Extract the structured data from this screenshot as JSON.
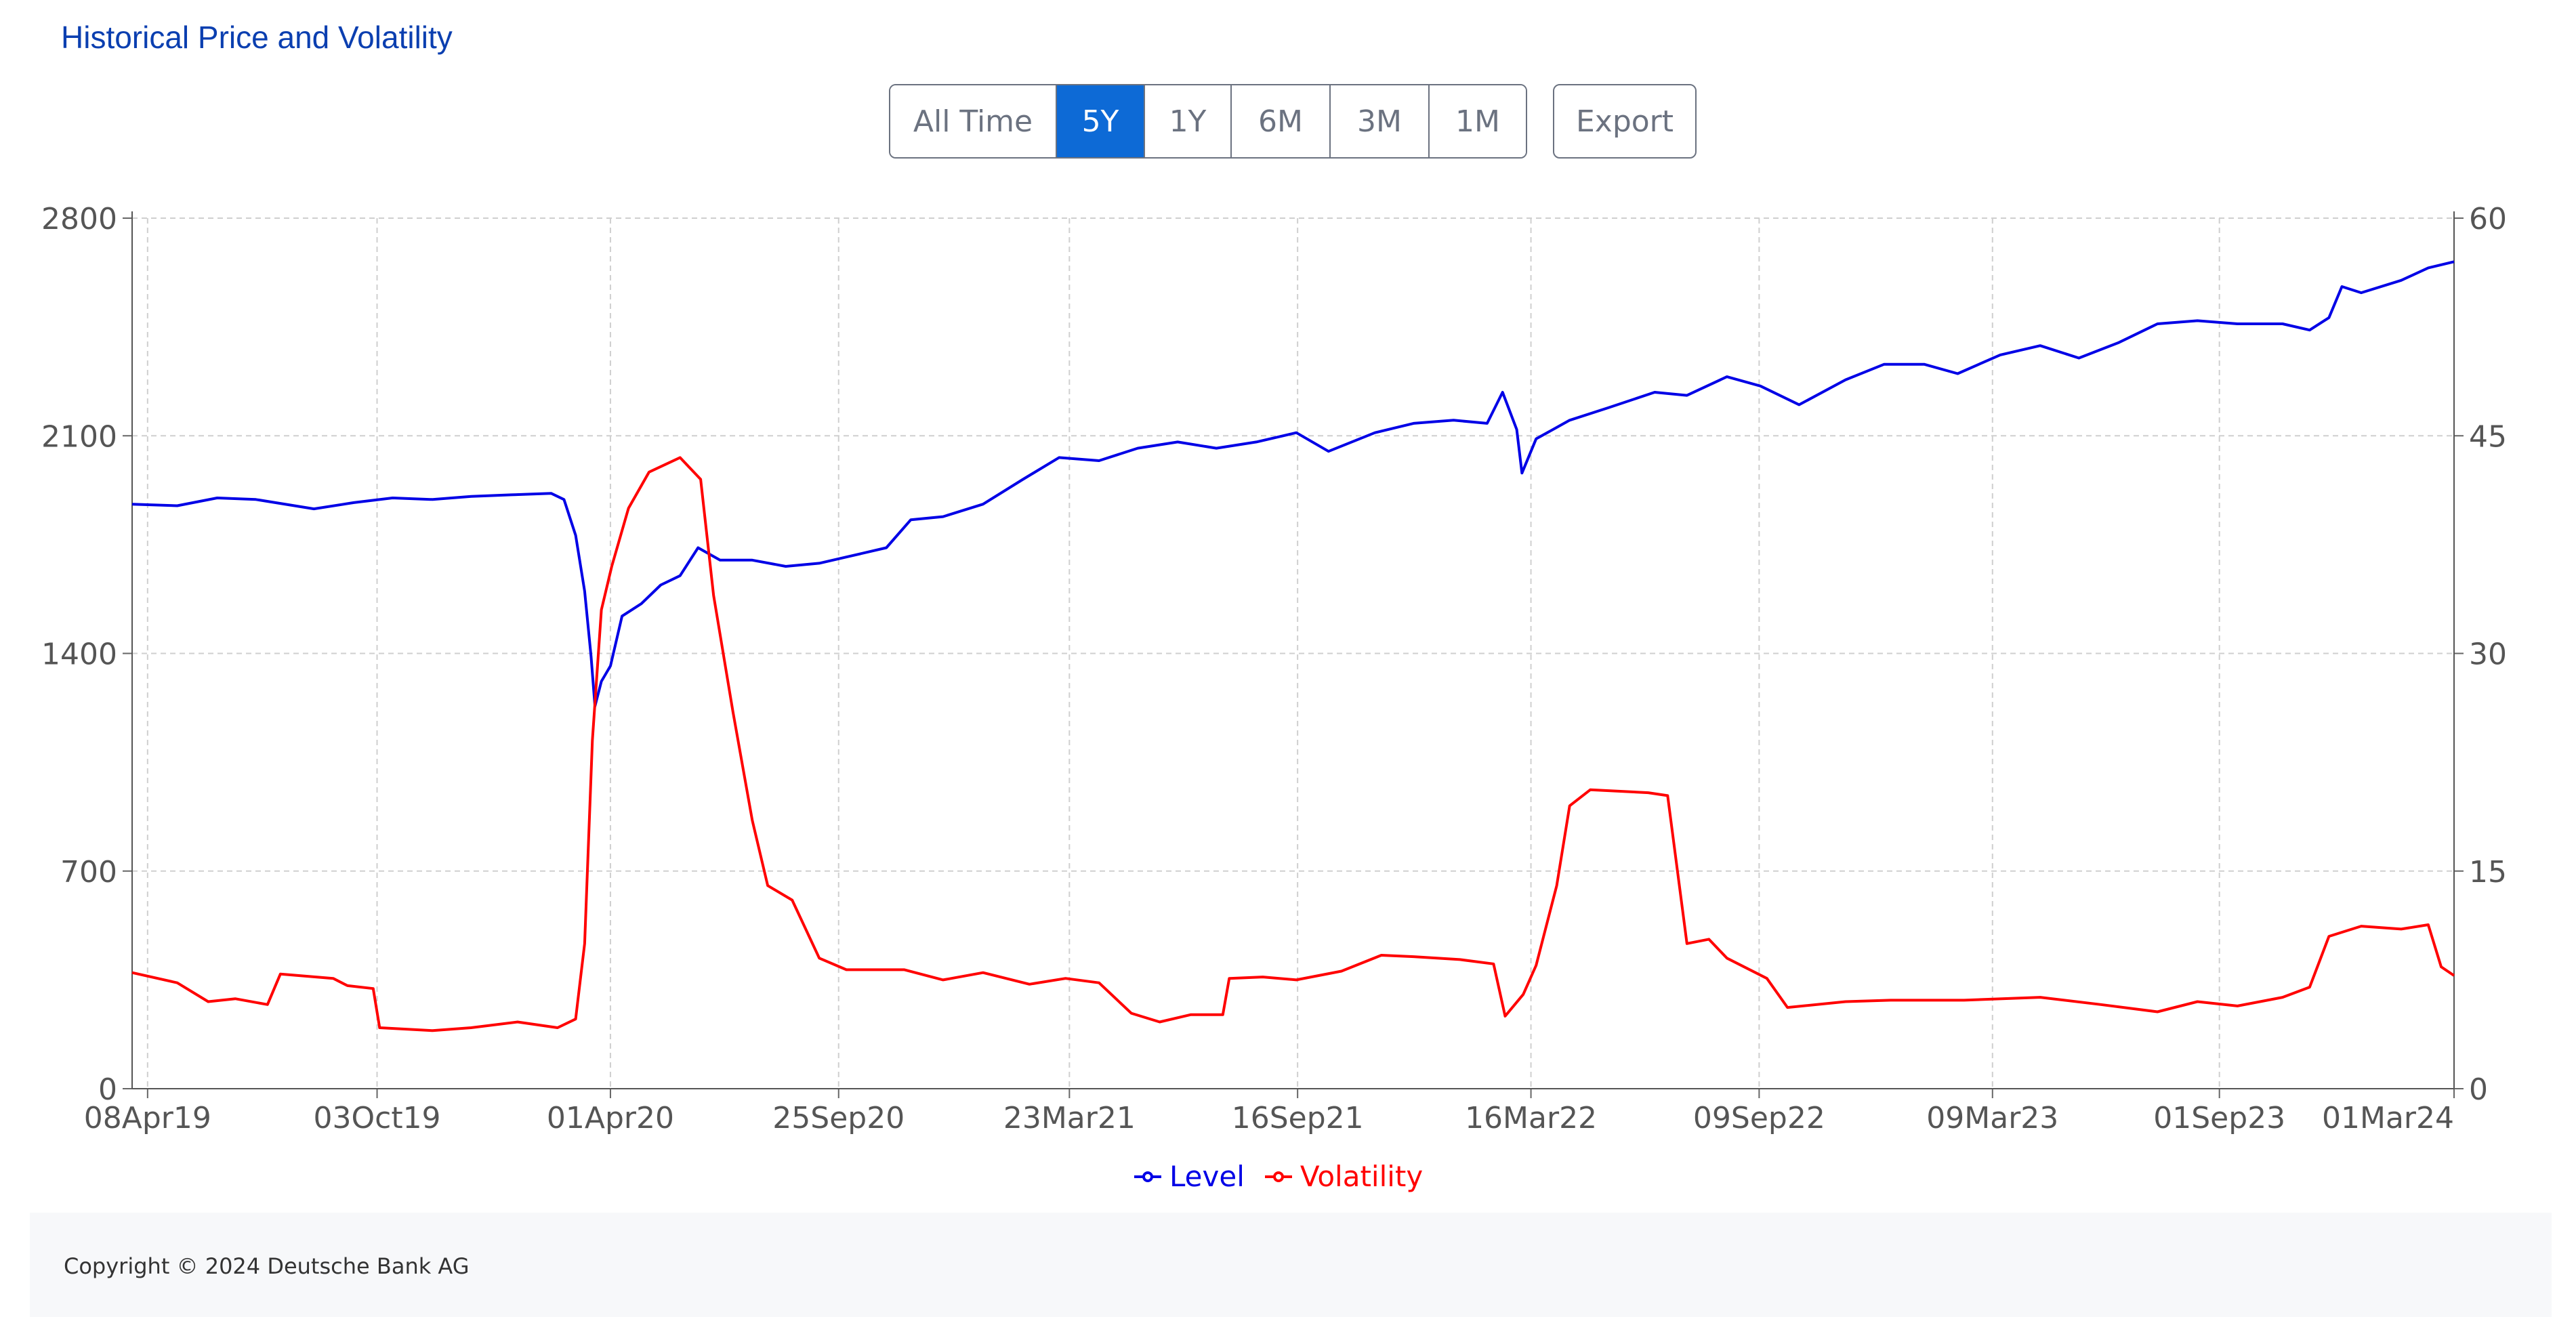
{
  "title": "Historical Price and Volatility",
  "ranges": [
    {
      "label": "All Time",
      "active": false
    },
    {
      "label": "5Y",
      "active": true
    },
    {
      "label": "1Y",
      "active": false
    },
    {
      "label": "6M",
      "active": false
    },
    {
      "label": "3M",
      "active": false
    },
    {
      "label": "1M",
      "active": false
    }
  ],
  "export_label": "Export",
  "colors": {
    "level": "#0000e6",
    "volatility": "#ff0000",
    "title": "#0b3fb0",
    "active": "#0d6ad6"
  },
  "footer": {
    "copyright": "Copyright © 2024 Deutsche Bank AG"
  },
  "chart_data": {
    "type": "line",
    "grid": true,
    "legend_position": "bottom",
    "x_ticks": [
      "08Apr19",
      "03Oct19",
      "01Apr20",
      "25Sep20",
      "23Mar21",
      "16Sep21",
      "16Mar22",
      "09Sep22",
      "09Mar23",
      "01Sep23",
      "01Mar24"
    ],
    "x_range": [
      "2019-03-27",
      "2024-03-01"
    ],
    "y_left": {
      "ticks": [
        0,
        700,
        1400,
        2100,
        2800
      ],
      "range": [
        0,
        2800
      ]
    },
    "y_right": {
      "ticks": [
        0,
        15,
        30,
        45,
        60
      ],
      "range": [
        0,
        60
      ]
    },
    "series": [
      {
        "name": "Level",
        "axis": "left",
        "color": "#0000e6",
        "points": [
          [
            "2019-03-27",
            1880
          ],
          [
            "2019-05-01",
            1875
          ],
          [
            "2019-06-01",
            1900
          ],
          [
            "2019-07-01",
            1895
          ],
          [
            "2019-08-15",
            1865
          ],
          [
            "2019-09-15",
            1885
          ],
          [
            "2019-10-15",
            1900
          ],
          [
            "2019-11-15",
            1895
          ],
          [
            "2019-12-15",
            1905
          ],
          [
            "2020-01-15",
            1910
          ],
          [
            "2020-02-15",
            1915
          ],
          [
            "2020-02-25",
            1895
          ],
          [
            "2020-03-05",
            1780
          ],
          [
            "2020-03-12",
            1600
          ],
          [
            "2020-03-17",
            1390
          ],
          [
            "2020-03-20",
            1230
          ],
          [
            "2020-03-25",
            1310
          ],
          [
            "2020-04-01",
            1360
          ],
          [
            "2020-04-10",
            1520
          ],
          [
            "2020-04-25",
            1560
          ],
          [
            "2020-05-10",
            1620
          ],
          [
            "2020-05-25",
            1650
          ],
          [
            "2020-06-08",
            1740
          ],
          [
            "2020-06-25",
            1700
          ],
          [
            "2020-07-20",
            1700
          ],
          [
            "2020-08-15",
            1680
          ],
          [
            "2020-09-10",
            1690
          ],
          [
            "2020-10-01",
            1710
          ],
          [
            "2020-11-01",
            1740
          ],
          [
            "2020-11-20",
            1830
          ],
          [
            "2020-12-15",
            1840
          ],
          [
            "2021-01-15",
            1880
          ],
          [
            "2021-02-15",
            1960
          ],
          [
            "2021-03-15",
            2030
          ],
          [
            "2021-04-15",
            2020
          ],
          [
            "2021-05-15",
            2060
          ],
          [
            "2021-06-15",
            2080
          ],
          [
            "2021-07-15",
            2060
          ],
          [
            "2021-08-15",
            2080
          ],
          [
            "2021-09-15",
            2110
          ],
          [
            "2021-10-10",
            2050
          ],
          [
            "2021-11-15",
            2110
          ],
          [
            "2021-12-15",
            2140
          ],
          [
            "2022-01-15",
            2150
          ],
          [
            "2022-02-10",
            2140
          ],
          [
            "2022-02-22",
            2240
          ],
          [
            "2022-03-05",
            2120
          ],
          [
            "2022-03-09",
            1980
          ],
          [
            "2022-03-20",
            2090
          ],
          [
            "2022-04-15",
            2150
          ],
          [
            "2022-05-15",
            2190
          ],
          [
            "2022-06-20",
            2240
          ],
          [
            "2022-07-15",
            2230
          ],
          [
            "2022-08-15",
            2290
          ],
          [
            "2022-09-10",
            2260
          ],
          [
            "2022-10-10",
            2200
          ],
          [
            "2022-11-15",
            2280
          ],
          [
            "2022-12-15",
            2330
          ],
          [
            "2023-01-15",
            2330
          ],
          [
            "2023-02-10",
            2300
          ],
          [
            "2023-03-15",
            2360
          ],
          [
            "2023-04-15",
            2390
          ],
          [
            "2023-05-15",
            2350
          ],
          [
            "2023-06-15",
            2400
          ],
          [
            "2023-07-15",
            2460
          ],
          [
            "2023-08-15",
            2470
          ],
          [
            "2023-09-15",
            2460
          ],
          [
            "2023-10-20",
            2460
          ],
          [
            "2023-11-10",
            2440
          ],
          [
            "2023-11-25",
            2480
          ],
          [
            "2023-12-05",
            2580
          ],
          [
            "2023-12-20",
            2560
          ],
          [
            "2024-01-20",
            2600
          ],
          [
            "2024-02-10",
            2640
          ],
          [
            "2024-03-01",
            2660
          ]
        ]
      },
      {
        "name": "Volatility",
        "axis": "right",
        "color": "#ff0000",
        "points": [
          [
            "2019-03-27",
            8.0
          ],
          [
            "2019-05-01",
            7.3
          ],
          [
            "2019-05-25",
            6.0
          ],
          [
            "2019-06-15",
            6.2
          ],
          [
            "2019-07-10",
            5.8
          ],
          [
            "2019-07-20",
            7.9
          ],
          [
            "2019-08-30",
            7.6
          ],
          [
            "2019-09-10",
            7.1
          ],
          [
            "2019-09-30",
            6.9
          ],
          [
            "2019-10-05",
            4.2
          ],
          [
            "2019-11-15",
            4.0
          ],
          [
            "2019-12-15",
            4.2
          ],
          [
            "2020-01-20",
            4.6
          ],
          [
            "2020-02-20",
            4.2
          ],
          [
            "2020-03-05",
            4.8
          ],
          [
            "2020-03-12",
            10.0
          ],
          [
            "2020-03-18",
            24.0
          ],
          [
            "2020-03-25",
            33.0
          ],
          [
            "2020-04-02",
            36.0
          ],
          [
            "2020-04-15",
            40.0
          ],
          [
            "2020-05-01",
            42.5
          ],
          [
            "2020-05-25",
            43.5
          ],
          [
            "2020-06-10",
            42.0
          ],
          [
            "2020-06-20",
            34.0
          ],
          [
            "2020-07-05",
            26.0
          ],
          [
            "2020-07-20",
            18.5
          ],
          [
            "2020-08-01",
            14.0
          ],
          [
            "2020-08-20",
            13.0
          ],
          [
            "2020-09-10",
            9.0
          ],
          [
            "2020-10-01",
            8.2
          ],
          [
            "2020-11-15",
            8.2
          ],
          [
            "2020-12-15",
            7.5
          ],
          [
            "2021-01-15",
            8.0
          ],
          [
            "2021-02-20",
            7.2
          ],
          [
            "2021-03-20",
            7.6
          ],
          [
            "2021-04-15",
            7.3
          ],
          [
            "2021-05-10",
            5.2
          ],
          [
            "2021-06-01",
            4.6
          ],
          [
            "2021-06-25",
            5.1
          ],
          [
            "2021-07-20",
            5.1
          ],
          [
            "2021-07-25",
            7.6
          ],
          [
            "2021-08-20",
            7.7
          ],
          [
            "2021-09-15",
            7.5
          ],
          [
            "2021-10-20",
            8.1
          ],
          [
            "2021-11-20",
            9.2
          ],
          [
            "2021-12-15",
            9.1
          ],
          [
            "2022-01-20",
            8.9
          ],
          [
            "2022-02-15",
            8.6
          ],
          [
            "2022-02-24",
            5.0
          ],
          [
            "2022-03-10",
            6.5
          ],
          [
            "2022-03-20",
            8.5
          ],
          [
            "2022-04-05",
            14.0
          ],
          [
            "2022-04-15",
            19.5
          ],
          [
            "2022-05-01",
            20.6
          ],
          [
            "2022-06-15",
            20.4
          ],
          [
            "2022-06-30",
            20.2
          ],
          [
            "2022-07-15",
            10.0
          ],
          [
            "2022-08-01",
            10.3
          ],
          [
            "2022-08-15",
            9.0
          ],
          [
            "2022-09-15",
            7.6
          ],
          [
            "2022-10-01",
            5.6
          ],
          [
            "2022-11-15",
            6.0
          ],
          [
            "2022-12-20",
            6.1
          ],
          [
            "2023-02-15",
            6.1
          ],
          [
            "2023-04-15",
            6.3
          ],
          [
            "2023-06-01",
            5.8
          ],
          [
            "2023-07-15",
            5.3
          ],
          [
            "2023-08-15",
            6.0
          ],
          [
            "2023-09-15",
            5.7
          ],
          [
            "2023-10-20",
            6.3
          ],
          [
            "2023-11-10",
            7.0
          ],
          [
            "2023-11-25",
            10.5
          ],
          [
            "2023-12-20",
            11.2
          ],
          [
            "2024-01-20",
            11.0
          ],
          [
            "2024-02-10",
            11.3
          ],
          [
            "2024-02-20",
            8.4
          ],
          [
            "2024-03-01",
            7.8
          ]
        ]
      }
    ]
  }
}
